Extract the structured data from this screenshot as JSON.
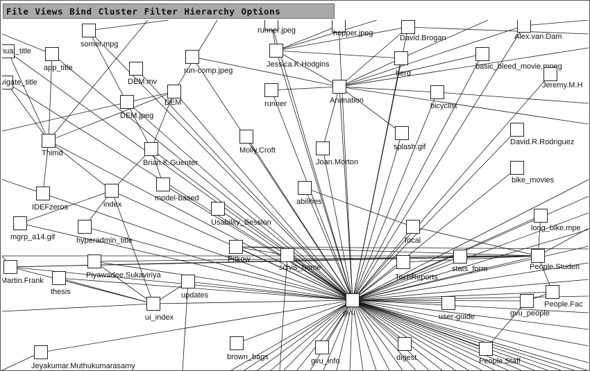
{
  "menu": [
    "File",
    "Views",
    "Bind",
    "Cluster",
    "Filter",
    "Hierarchy",
    "Options"
  ],
  "colors": {
    "background": "#ffffff",
    "menubar": "#a9a9a9",
    "edge": "#1a1a1a"
  },
  "nodes": [
    {
      "id": "runner_jpeg",
      "label": "runner.jpeg"
    },
    {
      "id": "hopper_jpeg",
      "label": "hopper.jpeg"
    },
    {
      "id": "david_brogan",
      "label": "David.Brogan"
    },
    {
      "id": "alex_van_dam",
      "label": "Alex.van.Dam"
    },
    {
      "id": "somer_mpg",
      "label": "somer.mpg"
    },
    {
      "id": "manual_title",
      "label": "nual_title"
    },
    {
      "id": "app_title",
      "label": "app_title"
    },
    {
      "id": "run_comp",
      "label": "run-comp.jpeg"
    },
    {
      "id": "jessica",
      "label": "Jessica.K.Hodgins"
    },
    {
      "id": "herd",
      "label": "herd"
    },
    {
      "id": "basic_bleed",
      "label": "basic_bleed_movie.mpeg"
    },
    {
      "id": "dem_mv",
      "label": "DEM.mv"
    },
    {
      "id": "jeremy",
      "label": "Jeremy.M.H"
    },
    {
      "id": "navigate_title",
      "label": "vigate_title"
    },
    {
      "id": "dem",
      "label": "DEM"
    },
    {
      "id": "runner",
      "label": "runner"
    },
    {
      "id": "animation",
      "label": "Animation"
    },
    {
      "id": "bicyclist",
      "label": "bicyclist"
    },
    {
      "id": "dem_jpeg",
      "label": "DEM.jpeg"
    },
    {
      "id": "thimd",
      "label": "Thimd"
    },
    {
      "id": "molly",
      "label": "Molly.Croft"
    },
    {
      "id": "splash",
      "label": "splash.gif"
    },
    {
      "id": "david_r",
      "label": "David.R.Rodriguez"
    },
    {
      "id": "brian",
      "label": "Brian.K.Guenter"
    },
    {
      "id": "joan",
      "label": "Joan.Morton"
    },
    {
      "id": "bike_movies",
      "label": "bike_movies"
    },
    {
      "id": "model_based",
      "label": "model-based"
    },
    {
      "id": "abilities",
      "label": "abilities"
    },
    {
      "id": "idefzeros",
      "label": "IDEFzeros"
    },
    {
      "id": "index",
      "label": "index"
    },
    {
      "id": "usability",
      "label": "Usability_Session"
    },
    {
      "id": "long_bike",
      "label": "long_bike.mpe"
    },
    {
      "id": "mgrp",
      "label": "mgrp_a14.gif"
    },
    {
      "id": "hyperadmin",
      "label": "hyperadmin_title"
    },
    {
      "id": "focal",
      "label": "focal"
    },
    {
      "id": "pitkow",
      "label": "Pitkow"
    },
    {
      "id": "scivis",
      "label": "scivis_home"
    },
    {
      "id": "stats_form",
      "label": "stats_form"
    },
    {
      "id": "people_student",
      "label": "People.Studen"
    },
    {
      "id": "martin",
      "label": "Martin.Frank"
    },
    {
      "id": "piyawadee",
      "label": "Piyawadee.Sukaviriya"
    },
    {
      "id": "techreports",
      "label": "TechReports"
    },
    {
      "id": "thesis",
      "label": "thesis"
    },
    {
      "id": "updates",
      "label": "updates"
    },
    {
      "id": "people_fac",
      "label": "People.Fac"
    },
    {
      "id": "ui_index",
      "label": "ui_index"
    },
    {
      "id": "gvu",
      "label": "gvu"
    },
    {
      "id": "user_guide",
      "label": "user-guide"
    },
    {
      "id": "gvu_people",
      "label": "gvu_people"
    },
    {
      "id": "brown_bags",
      "label": "brown_bags"
    },
    {
      "id": "gvu_info",
      "label": "gvu_info"
    },
    {
      "id": "digest",
      "label": "digest"
    },
    {
      "id": "people_staff",
      "label": "People.Staff"
    },
    {
      "id": "jeyakumar",
      "label": "Jeyakumar.Muthukumarasamy"
    }
  ]
}
